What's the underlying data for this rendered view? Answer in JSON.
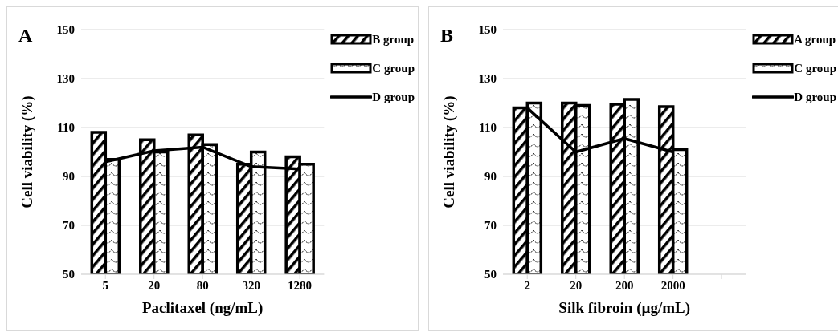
{
  "chart_data": [
    {
      "type": "bar",
      "title": "A",
      "categories": [
        "5",
        "20",
        "80",
        "320",
        "1280"
      ],
      "series": [
        {
          "name": "B group",
          "color": "#000000",
          "values": [
            108,
            105,
            107,
            95,
            98
          ]
        },
        {
          "name": "C group",
          "color": "#000000",
          "values": [
            97,
            100,
            103,
            100,
            95
          ]
        },
        {
          "name": "D group",
          "type": "line",
          "color": "#000000",
          "values": [
            96,
            100.5,
            102,
            94,
            93
          ]
        }
      ],
      "xlabel": "Paclitaxel (ng/mL)",
      "ylabel": "Cell viability (%)",
      "ylim": [
        50,
        150
      ],
      "yticks": [
        50,
        70,
        90,
        110,
        130,
        150
      ],
      "grid": "y",
      "legend": "top right",
      "marker": "none"
    },
    {
      "type": "bar",
      "title": "B",
      "categories": [
        "2",
        "20",
        "200",
        "2000",
        null
      ],
      "series": [
        {
          "name": "A group",
          "color": "#000000",
          "values": [
            118,
            120,
            119.5,
            118.5,
            null
          ]
        },
        {
          "name": "C group",
          "color": "#000000",
          "values": [
            120,
            119,
            121.5,
            101,
            null
          ]
        },
        {
          "name": "D group",
          "type": "line",
          "color": "#000000",
          "values": [
            118,
            100,
            105.5,
            100,
            null
          ]
        }
      ],
      "xlabel": "Silk fibroin (µg/mL)",
      "ylabel": "Cell viability (%)",
      "ylim": [
        50,
        150
      ],
      "yticks": [
        50,
        70,
        90,
        110,
        130,
        150
      ],
      "grid": "y",
      "legend": "top right",
      "marker": "none"
    }
  ]
}
